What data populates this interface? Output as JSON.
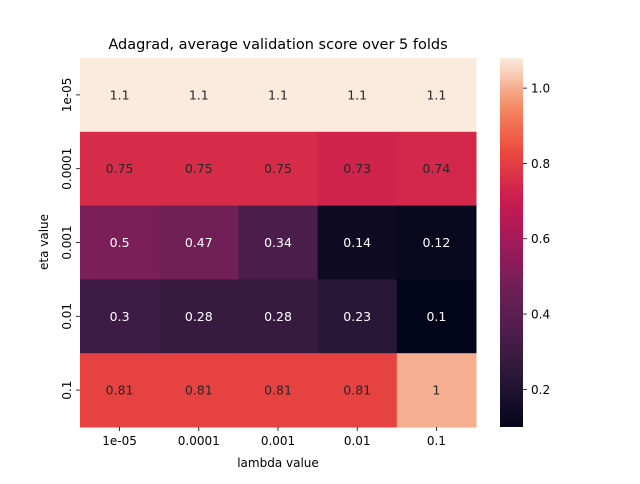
{
  "chart_data": {
    "type": "heatmap",
    "title": "Adagrad, average validation score over 5 folds",
    "xlabel": "lambda value",
    "ylabel": "eta value",
    "x_categories": [
      "1e-05",
      "0.0001",
      "0.001",
      "0.01",
      "0.1"
    ],
    "y_categories": [
      "1e-05",
      "0.0001",
      "0.001",
      "0.01",
      "0.1"
    ],
    "values": [
      [
        1.08,
        1.08,
        1.08,
        1.08,
        1.08
      ],
      [
        0.75,
        0.75,
        0.75,
        0.73,
        0.74
      ],
      [
        0.5,
        0.47,
        0.34,
        0.14,
        0.12
      ],
      [
        0.3,
        0.28,
        0.28,
        0.23,
        0.1
      ],
      [
        0.81,
        0.81,
        0.81,
        0.81,
        1.0
      ]
    ],
    "annotations": [
      [
        "1.1",
        "1.1",
        "1.1",
        "1.1",
        "1.1"
      ],
      [
        "0.75",
        "0.75",
        "0.75",
        "0.73",
        "0.74"
      ],
      [
        "0.5",
        "0.47",
        "0.34",
        "0.14",
        "0.12"
      ],
      [
        "0.3",
        "0.28",
        "0.28",
        "0.23",
        "0.1"
      ],
      [
        "0.81",
        "0.81",
        "0.81",
        "0.81",
        "1"
      ]
    ],
    "colorbar": {
      "min": 0.1,
      "max": 1.08,
      "ticks": [
        "0.2",
        "0.4",
        "0.6",
        "0.8",
        "1.0"
      ],
      "colormap": "rocket"
    }
  }
}
